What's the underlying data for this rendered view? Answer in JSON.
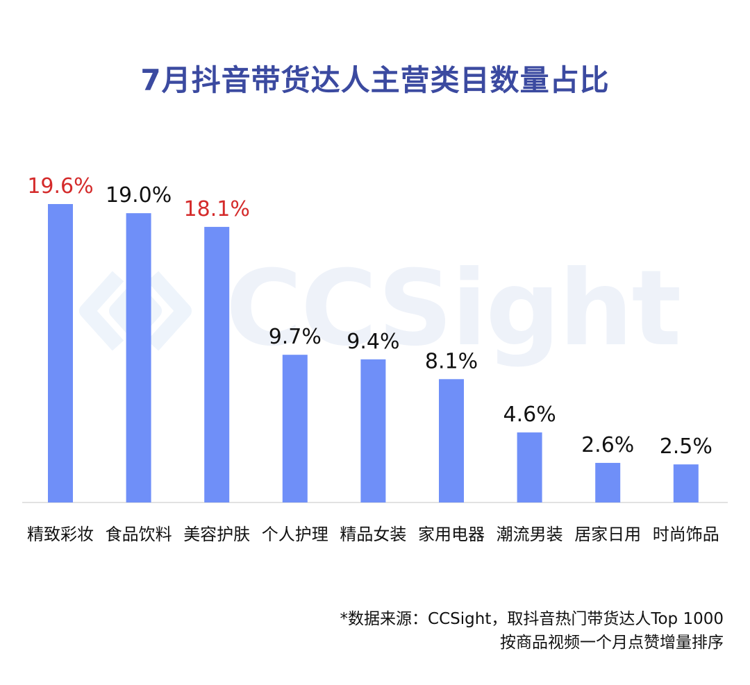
{
  "title": "7月抖音带货达人主营类目数量占比",
  "watermark": {
    "text": "CCSight",
    "icon": "ccsight-logo-icon",
    "color": "#eef2f9"
  },
  "colors": {
    "bar": "#6f8ff8",
    "highlight": "#d42a2a",
    "normal_label": "#111111",
    "title": "#3b4aa0"
  },
  "chart_data": {
    "type": "bar",
    "title": "7月抖音带货达人主营类目数量占比",
    "categories": [
      "精致彩妆",
      "食品饮料",
      "美容护肤",
      "个人护理",
      "精品女装",
      "家用电器",
      "潮流男装",
      "居家日用",
      "时尚饰品"
    ],
    "values": [
      19.6,
      19.0,
      18.1,
      9.7,
      9.4,
      8.1,
      4.6,
      2.6,
      2.5
    ],
    "value_labels": [
      "19.6%",
      "19.0%",
      "18.1%",
      "9.7%",
      "9.4%",
      "8.1%",
      "4.6%",
      "2.6%",
      "2.5%"
    ],
    "highlighted": [
      true,
      false,
      true,
      false,
      false,
      false,
      false,
      false,
      false
    ],
    "xlabel": "",
    "ylabel": "",
    "ylim": [
      0,
      19.6
    ],
    "grid": false,
    "legend": "none"
  },
  "footnote": {
    "line1": "*数据来源：CCSight，取抖音热门带货达人Top 1000",
    "line2": "按商品视频一个月点赞增量排序"
  }
}
